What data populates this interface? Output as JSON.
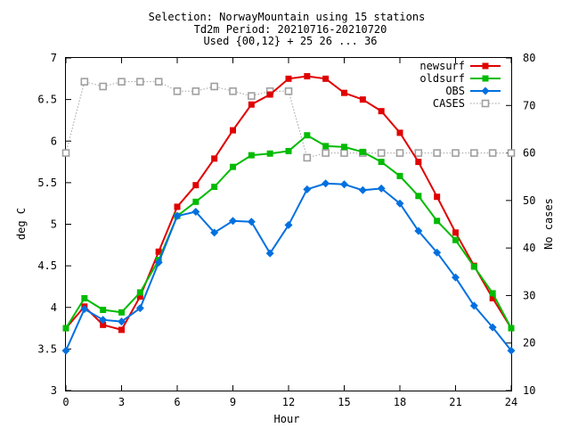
{
  "chart_data": {
    "type": "line",
    "title_lines": [
      "Selection: NorwayMountain using    15 stations",
      "Td2m   Period: 20210716-20210720",
      "Used {00,12} + 25 26 ... 36"
    ],
    "xlabel": "Hour",
    "ylabel": "deg C",
    "y2label": "No cases",
    "xlim": [
      0,
      24
    ],
    "ylim": [
      3,
      7
    ],
    "y2lim": [
      10,
      80
    ],
    "xticks": [
      0,
      3,
      6,
      9,
      12,
      15,
      18,
      21,
      24
    ],
    "yticks": [
      "3",
      "3.5",
      "4",
      "4.5",
      "5",
      "5.5",
      "6",
      "6.5",
      "7"
    ],
    "y2ticks": [
      10,
      20,
      30,
      40,
      50,
      60,
      70,
      80
    ],
    "legend_position": "top-right",
    "x": [
      0,
      1,
      2,
      3,
      4,
      5,
      6,
      7,
      8,
      9,
      10,
      11,
      12,
      13,
      14,
      15,
      16,
      17,
      18,
      19,
      20,
      21,
      22,
      23,
      24
    ],
    "series": [
      {
        "name": "newsurf",
        "color": "#e00000",
        "marker": "square",
        "axis": "left",
        "values": [
          3.75,
          4.01,
          3.79,
          3.73,
          4.13,
          4.67,
          5.21,
          5.47,
          5.79,
          6.13,
          6.44,
          6.56,
          6.75,
          6.78,
          6.75,
          6.58,
          6.5,
          6.36,
          6.1,
          5.75,
          5.33,
          4.9,
          4.5,
          4.11,
          3.75
        ]
      },
      {
        "name": "oldsurf",
        "color": "#00bb00",
        "marker": "square",
        "axis": "left",
        "values": [
          3.75,
          4.11,
          3.97,
          3.94,
          4.18,
          4.57,
          5.1,
          5.27,
          5.45,
          5.69,
          5.83,
          5.85,
          5.88,
          6.07,
          5.94,
          5.93,
          5.87,
          5.75,
          5.58,
          5.34,
          5.04,
          4.81,
          4.49,
          4.17,
          3.75
        ]
      },
      {
        "name": "OBS",
        "color": "#0070e0",
        "marker": "diamond",
        "axis": "left",
        "values": [
          3.48,
          3.98,
          3.85,
          3.83,
          3.99,
          4.54,
          5.1,
          5.15,
          4.9,
          5.04,
          5.03,
          4.65,
          4.99,
          5.42,
          5.49,
          5.48,
          5.41,
          5.43,
          5.25,
          4.92,
          4.66,
          4.36,
          4.02,
          3.76,
          3.48
        ]
      },
      {
        "name": "CASES",
        "color": "#a0a0a0",
        "marker": "open-square",
        "line": "dotted",
        "axis": "right",
        "values": [
          60,
          75,
          74,
          75,
          75,
          75,
          73,
          73,
          74,
          73,
          72,
          73,
          73,
          59,
          60,
          60,
          60,
          60,
          60,
          60,
          60,
          60,
          60,
          60,
          60
        ]
      }
    ]
  }
}
